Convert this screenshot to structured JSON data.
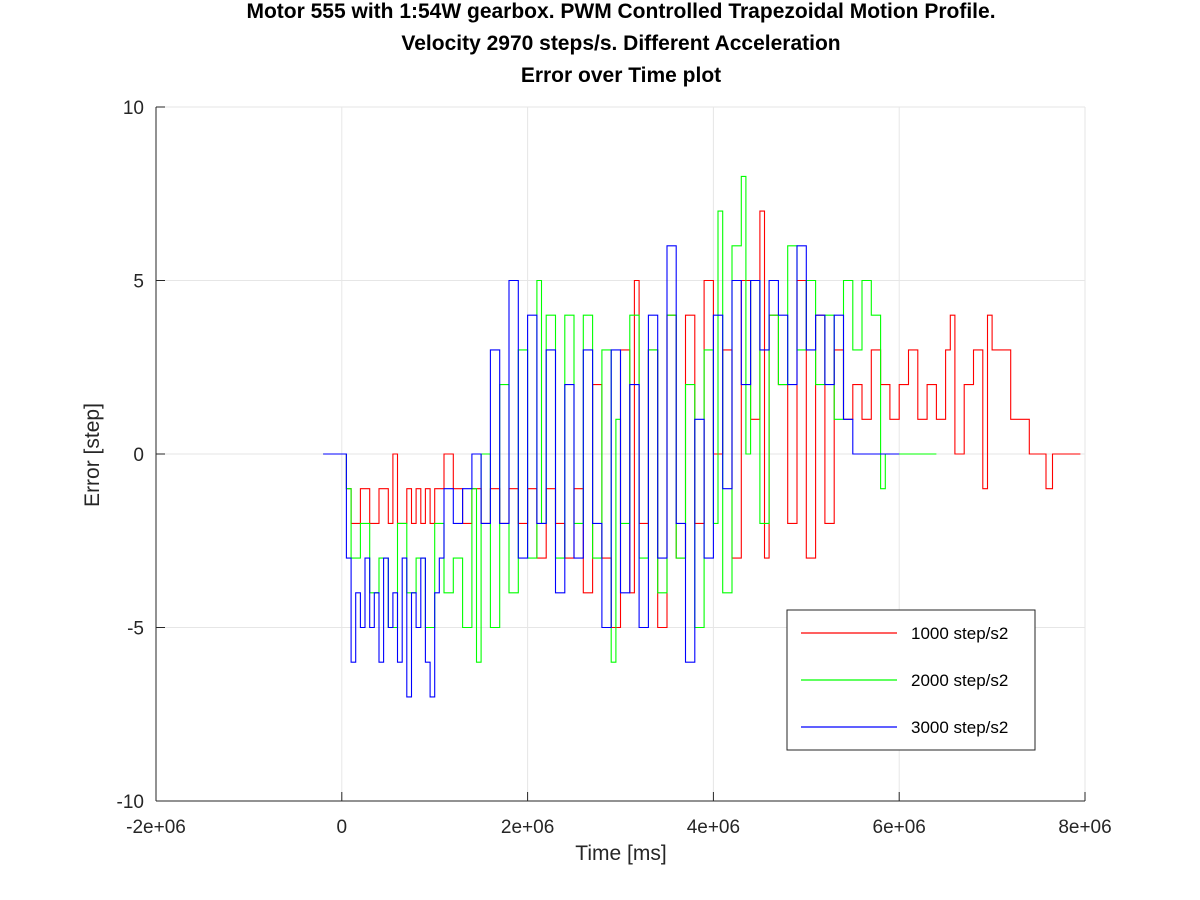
{
  "chart_data": {
    "type": "line",
    "title": [
      "Motor 555 with 1:54W gearbox. PWM Controlled Trapezoidal Motion Profile.",
      "Velocity 2970 steps/s. Different Acceleration",
      "Error over Time plot"
    ],
    "xlabel": "Time [ms]",
    "ylabel": "Error [step]",
    "xlim": [
      -2000000,
      8000000
    ],
    "ylim": [
      -10,
      10
    ],
    "xticks": [
      -2000000,
      0,
      2000000,
      4000000,
      6000000,
      8000000
    ],
    "xtick_labels": [
      "-2e+06",
      "0",
      "2e+06",
      "4e+06",
      "6e+06",
      "8e+06"
    ],
    "yticks": [
      -10,
      -5,
      0,
      5,
      10
    ],
    "ytick_labels": [
      "-10",
      "-5",
      "0",
      "5",
      "10"
    ],
    "grid": true,
    "legend_position": "bottom-right",
    "series": [
      {
        "name": "1000 step/s2",
        "color": "#ff0000",
        "x": [
          -200000,
          0,
          50000,
          100000,
          200000,
          300000,
          400000,
          500000,
          550000,
          600000,
          700000,
          750000,
          800000,
          850000,
          900000,
          950000,
          1000000,
          1100000,
          1200000,
          1300000,
          1400000,
          1500000,
          1600000,
          1700000,
          1800000,
          1900000,
          2000000,
          2100000,
          2200000,
          2300000,
          2400000,
          2500000,
          2600000,
          2700000,
          2800000,
          2900000,
          3000000,
          3100000,
          3150000,
          3200000,
          3300000,
          3400000,
          3500000,
          3600000,
          3700000,
          3800000,
          3900000,
          4000000,
          4100000,
          4200000,
          4300000,
          4400000,
          4500000,
          4550000,
          4600000,
          4700000,
          4800000,
          4900000,
          5000000,
          5100000,
          5200000,
          5300000,
          5400000,
          5500000,
          5600000,
          5700000,
          5800000,
          5900000,
          6000000,
          6100000,
          6200000,
          6300000,
          6400000,
          6500000,
          6550000,
          6600000,
          6700000,
          6800000,
          6900000,
          6950000,
          7000000,
          7100000,
          7200000,
          7300000,
          7400000,
          7500000,
          7580000,
          7650000,
          7800000,
          7950000
        ],
        "y": [
          0,
          0,
          -1,
          -2,
          -1,
          -2,
          -1,
          -2,
          0,
          -2,
          -1,
          -2,
          -1,
          -2,
          -1,
          -2,
          -1,
          0,
          -1,
          -2,
          -1,
          -2,
          -1,
          -2,
          -1,
          -2,
          -1,
          -3,
          -1,
          -2,
          -3,
          -1,
          -4,
          2,
          -3,
          -5,
          3,
          -4,
          5,
          -2,
          3,
          -5,
          4,
          -3,
          4,
          -2,
          5,
          0,
          3,
          -3,
          5,
          1,
          7,
          -3,
          4,
          2,
          -2,
          5,
          -3,
          4,
          -2,
          3,
          1,
          2,
          1,
          3,
          2,
          1,
          2,
          3,
          1,
          2,
          1,
          3,
          4,
          0,
          2,
          3,
          -1,
          4,
          3,
          3,
          1,
          1,
          0,
          0,
          -1,
          0,
          0,
          0
        ]
      },
      {
        "name": "2000 step/s2",
        "color": "#00ff00",
        "x": [
          -200000,
          0,
          50000,
          100000,
          200000,
          300000,
          400000,
          500000,
          600000,
          700000,
          800000,
          900000,
          1000000,
          1100000,
          1200000,
          1300000,
          1400000,
          1450000,
          1500000,
          1600000,
          1700000,
          1800000,
          1900000,
          2000000,
          2100000,
          2150000,
          2200000,
          2300000,
          2400000,
          2500000,
          2600000,
          2700000,
          2800000,
          2900000,
          2950000,
          3000000,
          3100000,
          3200000,
          3300000,
          3400000,
          3500000,
          3600000,
          3700000,
          3800000,
          3900000,
          4000000,
          4050000,
          4100000,
          4200000,
          4300000,
          4350000,
          4400000,
          4500000,
          4600000,
          4700000,
          4800000,
          4900000,
          5000000,
          5100000,
          5200000,
          5300000,
          5400000,
          5500000,
          5600000,
          5700000,
          5800000,
          5850000,
          6000000,
          6200000,
          6400000
        ],
        "y": [
          0,
          0,
          -1,
          -3,
          -2,
          -4,
          -3,
          -5,
          -2,
          -4,
          -3,
          -5,
          -2,
          -4,
          -3,
          -5,
          -1,
          -6,
          0,
          -5,
          2,
          -4,
          3,
          -3,
          5,
          -2,
          4,
          -3,
          4,
          -2,
          4,
          -3,
          3,
          -6,
          1,
          -2,
          4,
          -3,
          3,
          -4,
          4,
          -3,
          2,
          -5,
          3,
          -2,
          7,
          -4,
          6,
          8,
          0,
          5,
          -2,
          4,
          2,
          6,
          3,
          5,
          2,
          4,
          1,
          5,
          3,
          5,
          4,
          -1,
          0,
          0,
          0,
          0
        ]
      },
      {
        "name": "3000 step/s2",
        "color": "#0000ff",
        "x": [
          -200000,
          0,
          50000,
          100000,
          150000,
          200000,
          250000,
          300000,
          350000,
          400000,
          450000,
          500000,
          550000,
          600000,
          650000,
          700000,
          750000,
          800000,
          850000,
          900000,
          950000,
          1000000,
          1050000,
          1100000,
          1200000,
          1300000,
          1400000,
          1500000,
          1600000,
          1700000,
          1800000,
          1900000,
          2000000,
          2100000,
          2200000,
          2300000,
          2400000,
          2500000,
          2600000,
          2700000,
          2800000,
          2900000,
          3000000,
          3100000,
          3200000,
          3300000,
          3400000,
          3500000,
          3600000,
          3700000,
          3800000,
          3900000,
          4000000,
          4100000,
          4200000,
          4300000,
          4400000,
          4500000,
          4600000,
          4700000,
          4800000,
          4900000,
          5000000,
          5100000,
          5200000,
          5300000,
          5400000,
          5500000,
          6000000
        ],
        "y": [
          0,
          0,
          -3,
          -6,
          -4,
          -5,
          -3,
          -5,
          -4,
          -6,
          -3,
          -5,
          -4,
          -6,
          -3,
          -7,
          -4,
          -5,
          -3,
          -6,
          -7,
          -4,
          -3,
          -1,
          -2,
          -1,
          0,
          -2,
          3,
          -2,
          5,
          -3,
          4,
          -2,
          3,
          -4,
          2,
          -3,
          3,
          -2,
          -5,
          3,
          -4,
          2,
          -5,
          4,
          -3,
          6,
          -2,
          -6,
          1,
          -3,
          4,
          -1,
          5,
          2,
          5,
          3,
          5,
          4,
          2,
          6,
          3,
          4,
          2,
          4,
          1,
          0,
          0
        ]
      }
    ]
  }
}
